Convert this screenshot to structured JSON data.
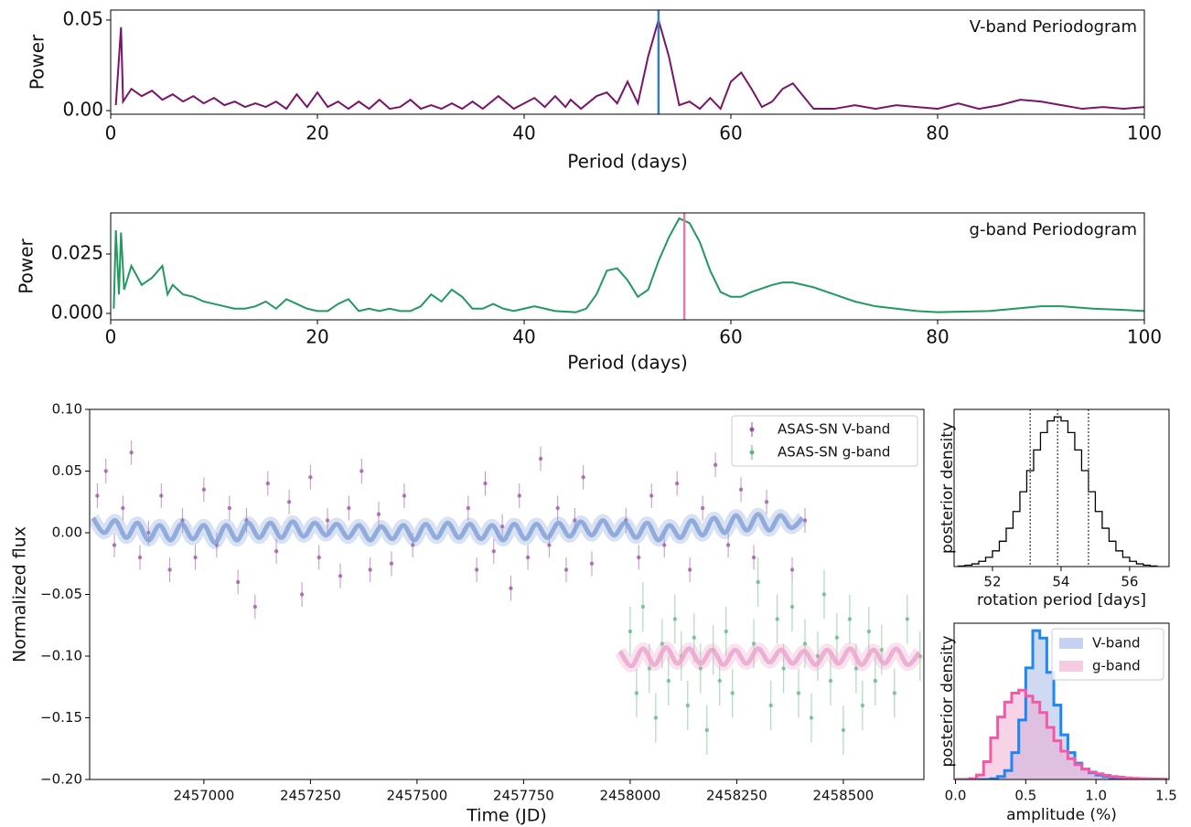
{
  "chart_data": [
    {
      "type": "line",
      "annotation": "V-band Periodogram",
      "xlabel": "Period (days)",
      "ylabel": "Power",
      "color": "#7b1466",
      "x": [
        0.5,
        1,
        1.2,
        2,
        3,
        4,
        5,
        6,
        7,
        8,
        9,
        10,
        11,
        12,
        13,
        14,
        15,
        16,
        17,
        18,
        19,
        20,
        21,
        22,
        23,
        24,
        25,
        26,
        27,
        28,
        29,
        30,
        31,
        32,
        33,
        34,
        35,
        36,
        37.5,
        39,
        41,
        42,
        43,
        44,
        44.5,
        45.5,
        47,
        48,
        49,
        50,
        51,
        52,
        53,
        54,
        55,
        56,
        57,
        58,
        59,
        60,
        61,
        62,
        63,
        64,
        65,
        66,
        67,
        68,
        69,
        70,
        72,
        74,
        76,
        78,
        80,
        82,
        84,
        86,
        88,
        90,
        92,
        94,
        96,
        98,
        100
      ],
      "values": [
        0.003,
        0.046,
        0.005,
        0.012,
        0.008,
        0.011,
        0.006,
        0.009,
        0.005,
        0.008,
        0.004,
        0.007,
        0.003,
        0.005,
        0.002,
        0.004,
        0.002,
        0.005,
        0.001,
        0.009,
        0.002,
        0.01,
        0.002,
        0.005,
        0.001,
        0.005,
        0.001,
        0.006,
        0.001,
        0.002,
        0.006,
        0.001,
        0.003,
        0.001,
        0.004,
        0.001,
        0.005,
        0.001,
        0.008,
        0.001,
        0.007,
        0.002,
        0.008,
        0.002,
        0.006,
        0.001,
        0.008,
        0.01,
        0.004,
        0.016,
        0.004,
        0.03,
        0.05,
        0.03,
        0.003,
        0.005,
        0.001,
        0.007,
        0.001,
        0.016,
        0.021,
        0.012,
        0.002,
        0.005,
        0.012,
        0.015,
        0.008,
        0.001,
        0.001,
        0.001,
        0.003,
        0.001,
        0.003,
        0.002,
        0.001,
        0.004,
        0.001,
        0.003,
        0.006,
        0.005,
        0.003,
        0.001,
        0.002,
        0.001,
        0.002
      ],
      "xlim": [
        0,
        100
      ],
      "ylim": [
        -0.002,
        0.0555
      ],
      "xticks": [
        0,
        20,
        40,
        60,
        80,
        100
      ],
      "yticks": [
        {
          "value": 0,
          "label": "0.00"
        },
        0.05
      ],
      "vline": {
        "x": 53,
        "color": "#3a7dbb"
      }
    },
    {
      "type": "line",
      "annotation": "g-band Periodogram",
      "xlabel": "Period (days)",
      "ylabel": "Power",
      "color": "#22995e",
      "x": [
        0.3,
        0.5,
        0.8,
        1,
        1.3,
        2,
        3,
        4,
        5,
        5.5,
        6,
        7,
        8,
        9,
        10,
        11,
        12,
        13,
        14,
        15,
        16,
        17,
        18,
        19,
        20,
        21,
        22,
        23,
        24,
        25,
        26,
        27,
        28,
        29,
        30,
        31,
        32,
        33,
        34,
        35,
        36,
        37,
        38,
        39,
        40,
        41,
        42,
        43,
        45,
        46,
        47,
        48,
        49,
        50,
        51,
        52,
        53,
        54,
        55,
        56,
        57,
        58,
        59,
        60,
        61,
        62,
        64,
        65,
        66,
        68,
        70,
        72,
        74,
        76,
        78,
        80,
        85,
        90,
        92,
        95,
        98,
        100
      ],
      "values": [
        0.002,
        0.035,
        0.008,
        0.034,
        0.01,
        0.02,
        0.012,
        0.015,
        0.02,
        0.008,
        0.012,
        0.008,
        0.007,
        0.005,
        0.004,
        0.003,
        0.002,
        0.002,
        0.003,
        0.005,
        0.002,
        0.006,
        0.004,
        0.002,
        0.001,
        0.001,
        0.004,
        0.006,
        0.001,
        0.002,
        0.001,
        0.002,
        0.001,
        0.001,
        0.003,
        0.008,
        0.005,
        0.01,
        0.007,
        0.002,
        0.002,
        0.004,
        0.002,
        0.001,
        0.002,
        0.003,
        0.002,
        0.001,
        0.0005,
        0.002,
        0.008,
        0.018,
        0.019,
        0.014,
        0.007,
        0.01,
        0.022,
        0.032,
        0.04,
        0.038,
        0.03,
        0.018,
        0.009,
        0.007,
        0.007,
        0.009,
        0.012,
        0.013,
        0.013,
        0.011,
        0.008,
        0.005,
        0.003,
        0.002,
        0.001,
        0.0005,
        0.001,
        0.003,
        0.003,
        0.002,
        0.0015,
        0.001
      ],
      "xlim": [
        0,
        100
      ],
      "ylim": [
        -0.0027,
        0.0423
      ],
      "xticks": [
        0,
        20,
        40,
        60,
        80,
        100
      ],
      "yticks": [
        {
          "value": 0,
          "label": "0.000"
        },
        0.025
      ],
      "vline": {
        "x": 55.5,
        "color": "#e87aa4"
      }
    },
    {
      "type": "scatter",
      "xlabel": "Time (JD)",
      "ylabel": "Normalized flux",
      "legend": "upper right",
      "xlim": [
        2456732,
        2458689
      ],
      "ylim": [
        -0.2,
        0.1
      ],
      "xticks": [
        2457000,
        2457250,
        2457500,
        2457750,
        2458000,
        2458250,
        2458500
      ],
      "yticks": [
        {
          "value": -0.2,
          "label": "−0.20"
        },
        {
          "value": -0.15,
          "label": "−0.15"
        },
        {
          "value": -0.1,
          "label": "−0.10"
        },
        {
          "value": -0.05,
          "label": "−0.05"
        },
        {
          "value": 0,
          "label": "0.00"
        },
        {
          "value": 0.05,
          "label": "0.05"
        },
        {
          "value": 0.1,
          "label": "0.10"
        }
      ],
      "series": [
        {
          "name": "ASAS-SN V-band",
          "color": "#9b4fa0",
          "error": 0.01,
          "x": [
            2456750,
            2456770,
            2456790,
            2456810,
            2456830,
            2456850,
            2456870,
            2456900,
            2456920,
            2456950,
            2456980,
            2457000,
            2457030,
            2457060,
            2457080,
            2457100,
            2457120,
            2457150,
            2457170,
            2457200,
            2457230,
            2457250,
            2457270,
            2457290,
            2457320,
            2457340,
            2457370,
            2457390,
            2457410,
            2457440,
            2457470,
            2457490,
            2457620,
            2457640,
            2457660,
            2457680,
            2457700,
            2457720,
            2457740,
            2457760,
            2457790,
            2457810,
            2457830,
            2457850,
            2457870,
            2457890,
            2457910,
            2457990,
            2458020,
            2458050,
            2458080,
            2458110,
            2458140,
            2458170,
            2458200,
            2458230,
            2458260,
            2458290,
            2458320,
            2458380,
            2458410
          ],
          "values": [
            0.03,
            0.05,
            -0.01,
            0.02,
            0.065,
            -0.02,
            0,
            0.03,
            -0.03,
            0.01,
            -0.02,
            0.035,
            -0.01,
            0.02,
            -0.04,
            0.01,
            -0.06,
            0.04,
            -0.015,
            0.025,
            -0.05,
            0.045,
            -0.02,
            0.01,
            -0.035,
            0.02,
            0.05,
            -0.03,
            0.015,
            -0.025,
            0.03,
            -0.01,
            0.02,
            -0.03,
            0.04,
            -0.015,
            0.005,
            -0.045,
            0.03,
            -0.02,
            0.06,
            -0.01,
            0.02,
            -0.03,
            0.01,
            0.045,
            -0.025,
            0.01,
            -0.02,
            0.03,
            -0.01,
            0.04,
            -0.03,
            0.02,
            0.055,
            -0.01,
            0.035,
            -0.02,
            0.025,
            -0.03,
            0.01
          ]
        },
        {
          "name": "ASAS-SN g-band",
          "color": "#5cb67e",
          "error": 0.02,
          "x": [
            2458000,
            2458015,
            2458030,
            2458045,
            2458060,
            2458075,
            2458090,
            2458105,
            2458120,
            2458135,
            2458150,
            2458165,
            2458180,
            2458195,
            2458210,
            2458225,
            2458240,
            2458290,
            2458300,
            2458330,
            2458345,
            2458360,
            2458380,
            2458395,
            2458410,
            2458425,
            2458440,
            2458455,
            2458470,
            2458485,
            2458500,
            2458515,
            2458530,
            2458545,
            2458560,
            2458575,
            2458590,
            2458620,
            2458650,
            2458680
          ],
          "values": [
            -0.08,
            -0.13,
            -0.06,
            -0.11,
            -0.15,
            -0.09,
            -0.12,
            -0.07,
            -0.1,
            -0.14,
            -0.085,
            -0.11,
            -0.16,
            -0.095,
            -0.12,
            -0.08,
            -0.13,
            -0.09,
            -0.04,
            -0.14,
            -0.07,
            -0.11,
            -0.06,
            -0.13,
            -0.09,
            -0.15,
            -0.1,
            -0.05,
            -0.12,
            -0.085,
            -0.16,
            -0.07,
            -0.11,
            -0.14,
            -0.08,
            -0.12,
            -0.095,
            -0.13,
            -0.07,
            -0.1
          ]
        }
      ],
      "models": [
        {
          "color": "#7f9fd6",
          "x": [
            2456740,
            2456766,
            2456792,
            2456818,
            2456844,
            2456870,
            2456896,
            2456922,
            2456948,
            2456974,
            2457000,
            2457026,
            2457052,
            2457078,
            2457104,
            2457130,
            2457156,
            2457182,
            2457208,
            2457234,
            2457260,
            2457286,
            2457312,
            2457338,
            2457364,
            2457390,
            2457416,
            2457442,
            2457468,
            2457494,
            2457520,
            2457546,
            2457572,
            2457598,
            2457624,
            2457650,
            2457676,
            2457702,
            2457728,
            2457754,
            2457780,
            2457806,
            2457832,
            2457858,
            2457884,
            2457910,
            2457936,
            2457962,
            2457988,
            2458014,
            2458040,
            2458066,
            2458092,
            2458118,
            2458144,
            2458170,
            2458196,
            2458222,
            2458248,
            2458274,
            2458300,
            2458326,
            2458352,
            2458378,
            2458404
          ],
          "values": [
            0.012,
            0,
            0.01,
            -0.004,
            0.008,
            -0.006,
            0.006,
            -0.006,
            0.007,
            -0.005,
            0.006,
            -0.008,
            0.006,
            -0.006,
            0.008,
            -0.004,
            0.008,
            -0.004,
            0.009,
            -0.003,
            0.008,
            -0.002,
            0.007,
            -0.004,
            0.006,
            -0.006,
            0.005,
            -0.005,
            0.006,
            -0.006,
            0.007,
            -0.004,
            0.008,
            -0.004,
            0.007,
            -0.005,
            0.006,
            -0.006,
            0.007,
            -0.005,
            0.007,
            -0.004,
            0.008,
            -0.003,
            0.009,
            -0.002,
            0.01,
            -0.002,
            0.008,
            -0.004,
            0.008,
            -0.006,
            0.006,
            -0.004,
            0.01,
            -0.002,
            0.012,
            0,
            0.014,
            0.002,
            0.015,
            0.002,
            0.014,
            0.004,
            0.012
          ]
        },
        {
          "color": "#eba3cb",
          "x": [
            2457976,
            2458003,
            2458030,
            2458057,
            2458084,
            2458111,
            2458138,
            2458165,
            2458192,
            2458219,
            2458246,
            2458273,
            2458300,
            2458327,
            2458354,
            2458381,
            2458408,
            2458435,
            2458462,
            2458489,
            2458516,
            2458543,
            2458570,
            2458597,
            2458624,
            2458651,
            2458678
          ],
          "values": [
            -0.096,
            -0.108,
            -0.094,
            -0.107,
            -0.093,
            -0.106,
            -0.094,
            -0.106,
            -0.095,
            -0.107,
            -0.095,
            -0.106,
            -0.094,
            -0.105,
            -0.095,
            -0.106,
            -0.096,
            -0.107,
            -0.095,
            -0.106,
            -0.094,
            -0.107,
            -0.095,
            -0.106,
            -0.094,
            -0.107,
            -0.097
          ]
        }
      ]
    },
    {
      "type": "histogram",
      "xlabel": "rotation period [days]",
      "ylabel": "posterior density",
      "color": "#000000",
      "fill": "#ffffff",
      "bins": [
        51,
        51.2,
        51.4,
        51.6,
        51.8,
        52,
        52.2,
        52.4,
        52.6,
        52.8,
        53,
        53.2,
        53.4,
        53.6,
        53.8,
        54,
        54.2,
        54.4,
        54.6,
        54.8,
        55,
        55.2,
        55.4,
        55.6,
        55.8,
        56,
        56.2,
        56.4,
        56.6,
        56.8
      ],
      "values": [
        0.4,
        0.9,
        1.8,
        3.5,
        6.2,
        10.5,
        16.9,
        25.6,
        36.8,
        50,
        64.1,
        77.9,
        89.5,
        97.3,
        100,
        97.3,
        89.5,
        77.9,
        64.1,
        50,
        36.8,
        25.6,
        16.9,
        10.5,
        6.2,
        3.5,
        1.8,
        0.9,
        0.4
      ],
      "xlim": [
        50.88,
        57.15
      ],
      "ylim": [
        0,
        105
      ],
      "xticks": [
        52,
        54,
        56
      ],
      "vlines": [
        53.1,
        53.9,
        54.8
      ],
      "vline_color": "#444444"
    },
    {
      "type": "histogram",
      "xlabel": "amplitude (%)",
      "ylabel": "posterior density",
      "legend": "upper right",
      "bins": [
        0,
        0.05,
        0.1,
        0.15,
        0.2,
        0.25,
        0.3,
        0.35,
        0.4,
        0.45,
        0.5,
        0.55,
        0.6,
        0.65,
        0.7,
        0.75,
        0.8,
        0.85,
        0.9,
        0.95,
        1,
        1.05,
        1.1,
        1.15,
        1.2,
        1.25,
        1.3,
        1.35,
        1.4,
        1.45,
        1.5
      ],
      "series": [
        {
          "name": "V-band",
          "color": "#1e88f0",
          "fill": "#9fb3e6",
          "values": [
            0,
            0,
            0,
            0,
            0,
            0.5,
            2,
            6,
            18,
            40,
            75,
            100,
            95,
            72,
            50,
            30,
            18,
            11,
            7,
            4.5,
            3,
            2,
            1.2,
            0.8,
            0.5,
            0.3,
            0.2,
            0.1,
            0.05,
            0
          ]
        },
        {
          "name": "g-band",
          "color": "#f25aa8",
          "fill": "#f0a8cf",
          "values": [
            0,
            0,
            0.5,
            3,
            12,
            28,
            42,
            52,
            58,
            60,
            56,
            52,
            45,
            35,
            26,
            19,
            14,
            10,
            7,
            5,
            3.8,
            2.8,
            2,
            1.5,
            1.1,
            0.8,
            0.5,
            0.4,
            0.3,
            0.2
          ]
        }
      ],
      "xlim": [
        -0.01,
        1.52
      ],
      "ylim": [
        0,
        105
      ],
      "xticks": [
        {
          "value": 0,
          "label": "0.0"
        },
        0.5,
        {
          "value": 1,
          "label": "1.0"
        },
        1.5
      ]
    }
  ]
}
